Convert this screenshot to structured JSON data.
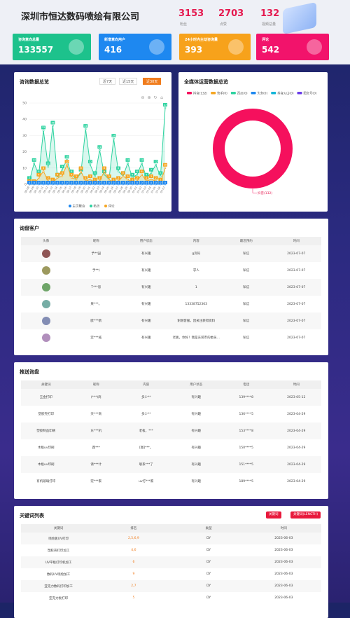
{
  "header": {
    "title": "深圳市恒达数码喷绘有限公司",
    "stats": [
      {
        "value": 3153,
        "label": "粉丝"
      },
      {
        "value": 2703,
        "label": "点赞"
      },
      {
        "value": 132,
        "label": "视频总量"
      }
    ]
  },
  "cards": [
    {
      "label": "咨询意向总量",
      "value": 133557,
      "color": "#1dc28c"
    },
    {
      "label": "新增意向用户",
      "value": 416,
      "color": "#1e88f0"
    },
    {
      "label": "24小时内主动咨询量",
      "value": 393,
      "color": "#f7a21b"
    },
    {
      "label": "评论",
      "value": 542,
      "color": "#f2136b"
    }
  ],
  "chart_data": [
    {
      "type": "line",
      "title": "咨询数据总览",
      "buttons": [
        "近7天",
        "近15天",
        "近30天"
      ],
      "categories": [
        "06-08",
        "06-09",
        "06-10",
        "06-11",
        "06-12",
        "06-13",
        "06-14",
        "06-15",
        "06-16",
        "06-17",
        "06-18",
        "06-19",
        "06-20",
        "06-21",
        "06-22",
        "06-23",
        "06-24",
        "06-25",
        "06-26",
        "06-27",
        "06-28",
        "06-29",
        "06-30",
        "07-01",
        "07-02",
        "07-03",
        "07-04",
        "07-05",
        "07-06",
        "07-07"
      ],
      "series": [
        {
          "name": "主页聚合",
          "color": "#1e88f0",
          "values": [
            0,
            0,
            0,
            0,
            0,
            0,
            0,
            0,
            0,
            0,
            0,
            0,
            0,
            0,
            0,
            0,
            0,
            0,
            0,
            0,
            0,
            0,
            0,
            0,
            0,
            0,
            0,
            0,
            0,
            0
          ]
        },
        {
          "name": "私信",
          "color": "#2ed3a0",
          "values": [
            2,
            13,
            6,
            33,
            11,
            36,
            4,
            9,
            15,
            6,
            3,
            7,
            34,
            12,
            5,
            21,
            6,
            3,
            28,
            8,
            5,
            13,
            4,
            6,
            13,
            4,
            7,
            12,
            5,
            47
          ]
        },
        {
          "name": "评论",
          "color": "#f5a623",
          "values": [
            0,
            0,
            4,
            8,
            2,
            1,
            4,
            5,
            12,
            4,
            3,
            8,
            2,
            3,
            1,
            2,
            8,
            3,
            1,
            2,
            5,
            3,
            1,
            2,
            6,
            2,
            3,
            2,
            1,
            10
          ]
        }
      ],
      "ylim": [
        0,
        50
      ],
      "yticks": [
        0,
        10,
        20,
        30,
        40,
        50
      ],
      "grid": true
    },
    {
      "type": "pie",
      "title": "全媒体运营数据总览",
      "categories": [
        "抖音",
        "快手",
        "西瓜",
        "头条",
        "抖音火山",
        "图文号"
      ],
      "legend_labels": [
        "抖音(132)",
        "快手(0)",
        "西瓜(0)",
        "头条(0)",
        "抖音火山(0)",
        "图文号(0)"
      ],
      "values": [
        132,
        0,
        0,
        0,
        0,
        0
      ],
      "colors": [
        "#f5105d",
        "#f5a623",
        "#2ed3a0",
        "#1e88f0",
        "#13b5d8",
        "#6a3de8"
      ]
    }
  ],
  "customers": {
    "title": "询盘客户",
    "columns": [
      "头像",
      "昵称",
      "用户状态",
      "内容",
      "最近预约",
      "时间"
    ],
    "rows": [
      [
        "予**园",
        "有兴趣",
        "g页码",
        "私信",
        "2023-07-07"
      ],
      [
        "予**)",
        "有兴趣",
        "求人",
        "私信",
        "2023-07-07"
      ],
      [
        "T***思",
        "有兴趣",
        "1",
        "私信",
        "2023-07-07"
      ],
      [
        "果***。",
        "有兴趣",
        "13338752363",
        "私信",
        "2023-07-07"
      ],
      [
        "欧***鹤",
        "有兴趣",
        "谢谢客服，因关注获得资料",
        "私信",
        "2023-07-07"
      ],
      [
        "定***威",
        "有兴趣",
        "老板，你好！我是东莞市的委员...",
        "私信",
        "2023-07-07"
      ]
    ]
  },
  "push": {
    "title": "推送询盘",
    "columns": [
      "关键词",
      "昵称",
      "内容",
      "用户状态",
      "电话",
      "时间"
    ],
    "rows": [
      [
        "五金打印",
        "(***)商",
        "多少**",
        "有兴趣",
        "139****8",
        "2023-05-12"
      ],
      [
        "塑胶壳打印",
        "天***商",
        "多少**",
        "有兴趣",
        "136****5",
        "2023-04-29"
      ],
      [
        "塑胶制品印刷",
        "东***机",
        "老板，***",
        "有兴趣",
        "153****8",
        "2023-04-29"
      ],
      [
        "木板uv印刷",
        "西***",
        "[图]***。",
        "有兴趣",
        "150****5",
        "2023-04-29"
      ],
      [
        "木板uv印刷",
        "请***计",
        "联系***了",
        "有兴趣",
        "151****5",
        "2023-04-29"
      ],
      [
        "有机玻璃打印",
        "宏***家",
        "uv打***家",
        "有兴趣",
        "189****5",
        "2023-04-29"
      ]
    ]
  },
  "keywords": {
    "title": "关键词列表",
    "buttons": [
      "关键词",
      "关键词(LENGTH)"
    ],
    "columns": [
      "关键词",
      "排名",
      "类型",
      "时间"
    ],
    "rows": [
      [
        "喷绘板UV打印",
        "2,5,6,9",
        "DY",
        "2023-06-03"
      ],
      [
        "塑胶壳打印加工",
        "4,6",
        "DY",
        "2023-06-03"
      ],
      [
        "UV平板打印机加工",
        "6",
        "DY",
        "2023-06-03"
      ],
      [
        "数码UV喷绘加工",
        "9",
        "DY",
        "2023-06-03"
      ],
      [
        "亚克力数码打印加工",
        "2,7",
        "DY",
        "2023-06-03"
      ],
      [
        "亚克力板打印",
        "5",
        "DY",
        "2023-06-03"
      ]
    ]
  }
}
